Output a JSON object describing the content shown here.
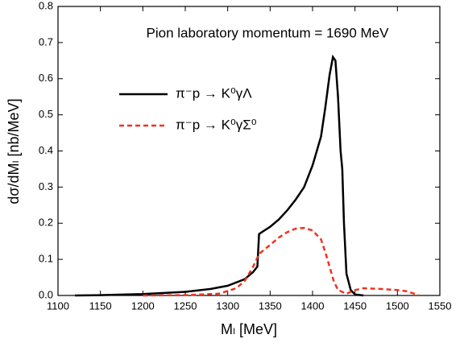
{
  "chart_data": {
    "type": "line",
    "title": "Pion laboratory momentum = 1690 MeV",
    "x_label": "Mₗ [MeV]",
    "y_label": "dσ/dMₗ [nb/MeV]",
    "series": [
      {
        "name": "π⁻p → K⁰γΛ",
        "color": "#000000",
        "dash": false,
        "x": [
          1120,
          1150,
          1200,
          1250,
          1280,
          1300,
          1320,
          1330,
          1335,
          1337,
          1340,
          1350,
          1360,
          1370,
          1380,
          1390,
          1400,
          1410,
          1415,
          1420,
          1424,
          1427,
          1430,
          1433,
          1435,
          1437,
          1440,
          1445,
          1450,
          1460
        ],
        "values": [
          0,
          0.001,
          0.004,
          0.01,
          0.018,
          0.027,
          0.045,
          0.065,
          0.08,
          0.17,
          0.175,
          0.19,
          0.21,
          0.235,
          0.265,
          0.3,
          0.36,
          0.44,
          0.52,
          0.61,
          0.66,
          0.65,
          0.55,
          0.4,
          0.35,
          0.2,
          0.06,
          0.015,
          0.003,
          0
        ]
      },
      {
        "name": "π⁻p → K⁰γΣ⁰",
        "color": "#ee3322",
        "dash": true,
        "x": [
          1200,
          1250,
          1290,
          1310,
          1320,
          1330,
          1337,
          1350,
          1360,
          1370,
          1380,
          1390,
          1400,
          1410,
          1415,
          1420,
          1425,
          1430,
          1440,
          1450,
          1460,
          1480,
          1500,
          1510,
          1520,
          1525
        ],
        "values": [
          0,
          0.001,
          0.005,
          0.02,
          0.04,
          0.08,
          0.115,
          0.14,
          0.16,
          0.175,
          0.185,
          0.187,
          0.18,
          0.155,
          0.12,
          0.08,
          0.04,
          0.015,
          0.005,
          0.015,
          0.02,
          0.018,
          0.015,
          0.012,
          0.005,
          0
        ]
      }
    ],
    "xlim": [
      1100,
      1550
    ],
    "ylim": [
      0,
      0.8
    ],
    "xticks": [
      1100,
      1150,
      1200,
      1250,
      1300,
      1350,
      1400,
      1450,
      1500,
      1550
    ],
    "yticks": [
      {
        "value": 0,
        "label": "0.0"
      },
      0.1,
      0.2,
      0.3,
      0.4,
      0.5,
      0.6,
      0.7,
      0.8
    ]
  }
}
